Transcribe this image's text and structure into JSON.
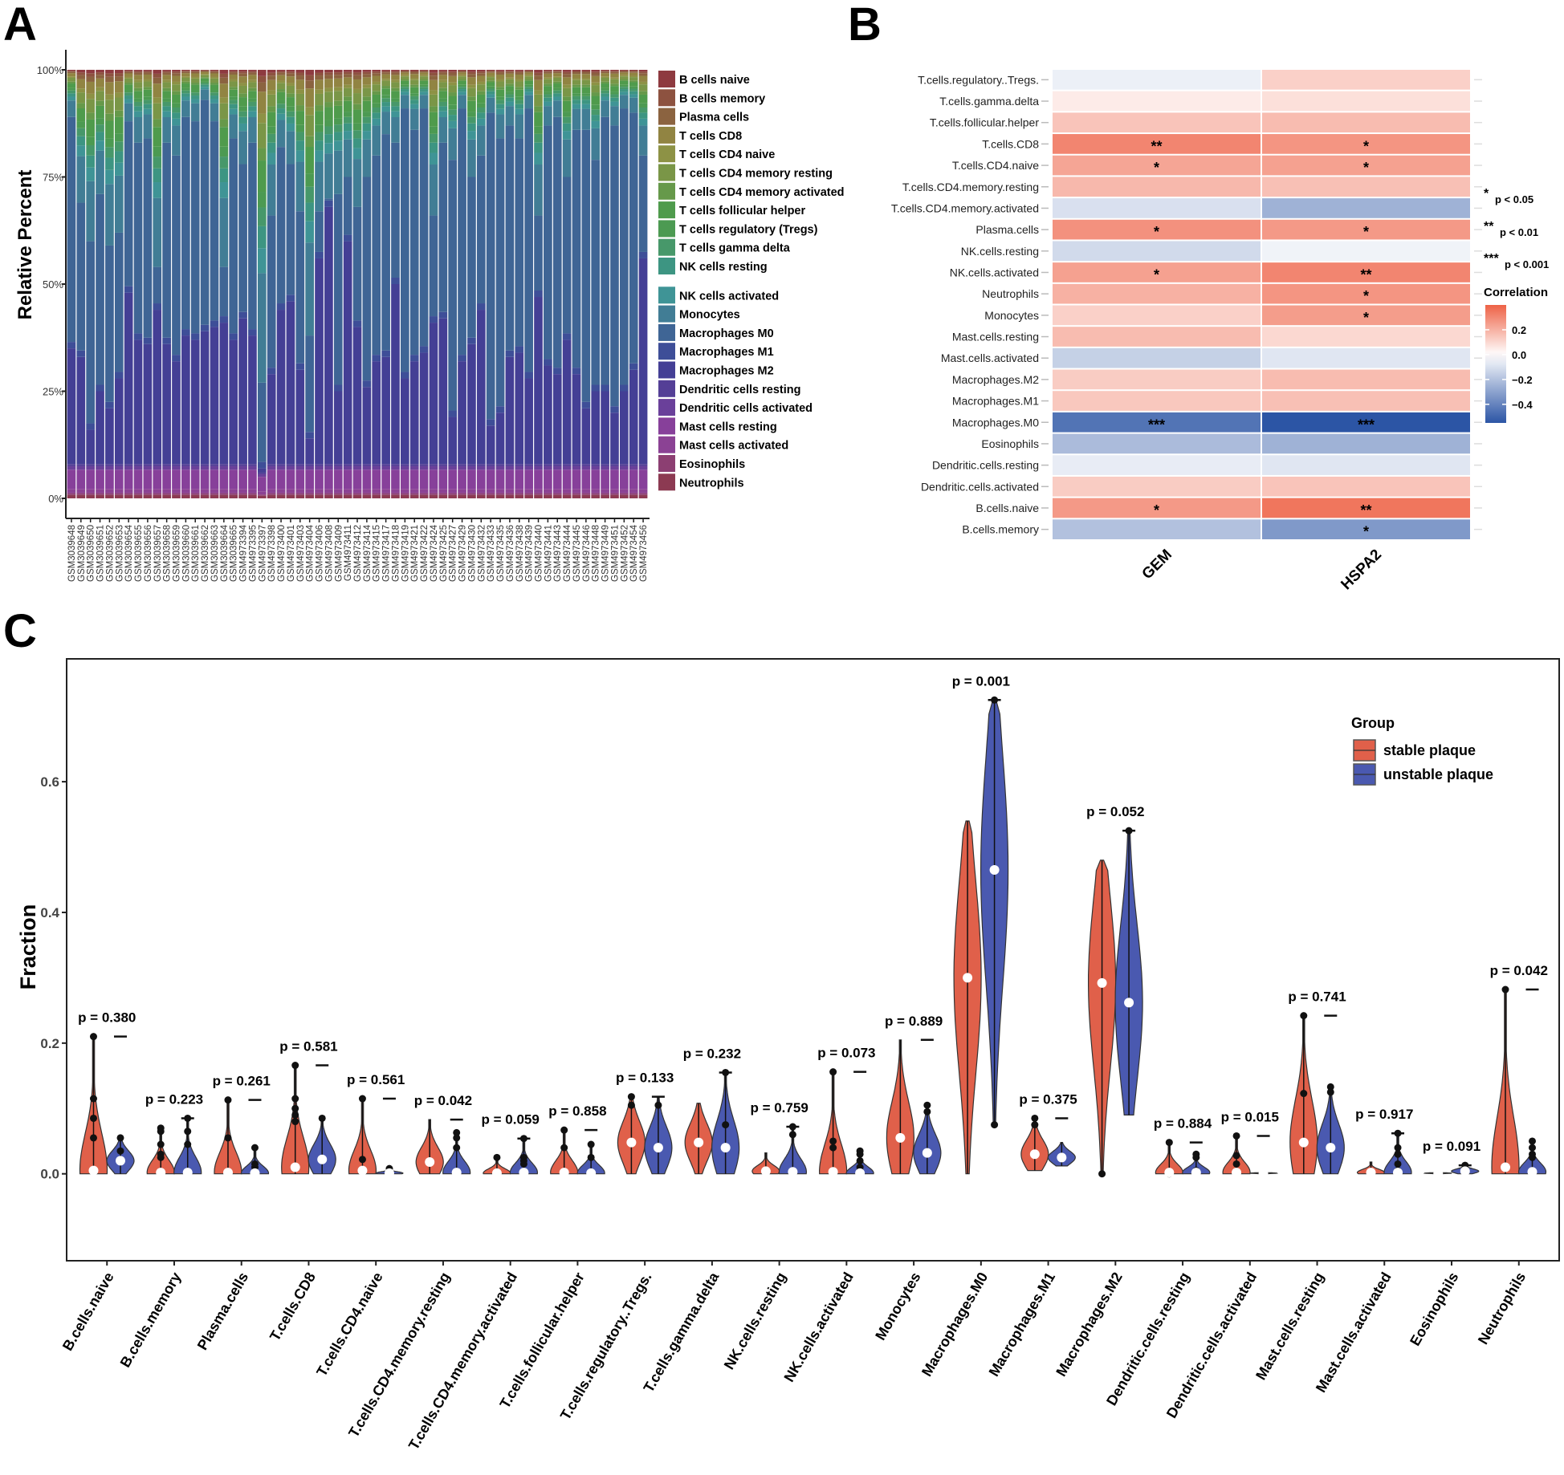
{
  "panel_labels": {
    "a": "A",
    "b": "B",
    "c": "C"
  },
  "chart_data": [
    {
      "id": "A",
      "type": "bar",
      "stacked": true,
      "ylabel": "Relative Percent",
      "yticks": [
        "0%",
        "25%",
        "50%",
        "75%",
        "100%"
      ],
      "ylim": [
        0,
        100
      ],
      "categories": [
        "GSM3039648",
        "GSM3039649",
        "GSM3039650",
        "GSM3039651",
        "GSM3039652",
        "GSM3039653",
        "GSM3039654",
        "GSM3039655",
        "GSM3039656",
        "GSM3039657",
        "GSM3039658",
        "GSM3039659",
        "GSM3039660",
        "GSM3039661",
        "GSM3039662",
        "GSM3039663",
        "GSM3039664",
        "GSM3039665",
        "GSM4973394",
        "GSM4973395",
        "GSM4973397",
        "GSM4973398",
        "GSM4973400",
        "GSM4973401",
        "GSM4973403",
        "GSM4973404",
        "GSM4973406",
        "GSM4973408",
        "GSM4973409",
        "GSM4973411",
        "GSM4973412",
        "GSM4973414",
        "GSM4973415",
        "GSM4973417",
        "GSM4973418",
        "GSM4973419",
        "GSM4973421",
        "GSM4973422",
        "GSM4973424",
        "GSM4973425",
        "GSM4973427",
        "GSM4973429",
        "GSM4973430",
        "GSM4973432",
        "GSM4973433",
        "GSM4973435",
        "GSM4973436",
        "GSM4973438",
        "GSM4973439",
        "GSM4973440",
        "GSM4973441",
        "GSM4973443",
        "GSM4973444",
        "GSM4973445",
        "GSM4973446",
        "GSM4973448",
        "GSM4973449",
        "GSM4973451",
        "GSM4973452",
        "GSM4973454",
        "GSM4973456"
      ],
      "legend": [
        {
          "label": "B cells naive",
          "color": "#8e3a40"
        },
        {
          "label": "B cells memory",
          "color": "#8d5240"
        },
        {
          "label": "Plasma cells",
          "color": "#8b6340"
        },
        {
          "label": "T cells CD8",
          "color": "#918442"
        },
        {
          "label": "T cells CD4 naive",
          "color": "#8d9245"
        },
        {
          "label": "T cells CD4 memory resting",
          "color": "#7a9647"
        },
        {
          "label": "T cells CD4 memory activated",
          "color": "#66994a"
        },
        {
          "label": "T cells follicular helper",
          "color": "#4f9b4c"
        },
        {
          "label": "T cells regulatory (Tregs)",
          "color": "#4c9a52"
        },
        {
          "label": "T cells gamma delta",
          "color": "#47986a"
        },
        {
          "label": "NK cells resting",
          "color": "#3d9582"
        },
        {
          "label": "NK cells activated",
          "color": "#3f9496"
        },
        {
          "label": "Monocytes",
          "color": "#417d95"
        },
        {
          "label": "Macrophages M0",
          "color": "#3f6595"
        },
        {
          "label": "Macrophages M1",
          "color": "#3e4e98"
        },
        {
          "label": "Macrophages M2",
          "color": "#443f95"
        },
        {
          "label": "Dendritic cells resting",
          "color": "#543f96"
        },
        {
          "label": "Dendritic cells activated",
          "color": "#6a409a"
        },
        {
          "label": "Mast cells resting",
          "color": "#87409a"
        },
        {
          "label": "Mast cells activated",
          "color": "#8b4294"
        },
        {
          "label": "Eosinophils",
          "color": "#8c3f72"
        },
        {
          "label": "Neutrophils",
          "color": "#8c3a52"
        }
      ],
      "m2_cumulative_top_percent": [
        35,
        33,
        16,
        25,
        21,
        28,
        48,
        37,
        36,
        44,
        36,
        32,
        38,
        37,
        39,
        40,
        41,
        37,
        42,
        38,
        7,
        29,
        44,
        46,
        30,
        14,
        56,
        68,
        25,
        60,
        40,
        26,
        32,
        33,
        50,
        28,
        32,
        34,
        41,
        42,
        19,
        32,
        36,
        44,
        17,
        20,
        33,
        34,
        28,
        47,
        31,
        29,
        37,
        29,
        21,
        25,
        25,
        20,
        25,
        30,
        56
      ],
      "m0_cumulative_top_percent": [
        89,
        69,
        60,
        71,
        59,
        62,
        88,
        83,
        84,
        54,
        83,
        80,
        89,
        88,
        93,
        88,
        54,
        84,
        78,
        83,
        27,
        66,
        82,
        78,
        67,
        38,
        67,
        70,
        71,
        75,
        68,
        75,
        80,
        85,
        83,
        91,
        86,
        91,
        66,
        83,
        79,
        91,
        75,
        80,
        90,
        84,
        87,
        84,
        91,
        66,
        87,
        89,
        75,
        86,
        86,
        79,
        89,
        87,
        91,
        90,
        80
      ]
    },
    {
      "id": "B",
      "type": "heatmap",
      "rows": [
        "T.cells.regulatory..Tregs.",
        "T.cells.gamma.delta",
        "T.cells.follicular.helper",
        "T.cells.CD8",
        "T.cells.CD4.naive",
        "T.cells.CD4.memory.resting",
        "T.cells.CD4.memory.activated",
        "Plasma.cells",
        "NK.cells.resting",
        "NK.cells.activated",
        "Neutrophils",
        "Monocytes",
        "Mast.cells.resting",
        "Mast.cells.activated",
        "Macrophages.M2",
        "Macrophages.M1",
        "Macrophages.M0",
        "Eosinophils",
        "Dendritic.cells.resting",
        "Dendritic.cells.activated",
        "B.cells.naive",
        "B.cells.memory"
      ],
      "columns": [
        "GEM",
        "HSPA2"
      ],
      "values": [
        [
          -0.05,
          0.12
        ],
        [
          0.05,
          0.08
        ],
        [
          0.15,
          0.17
        ],
        [
          0.31,
          0.27
        ],
        [
          0.23,
          0.24
        ],
        [
          0.18,
          0.16
        ],
        [
          -0.1,
          -0.25
        ],
        [
          0.28,
          0.26
        ],
        [
          -0.12,
          -0.04
        ],
        [
          0.24,
          0.31
        ],
        [
          0.2,
          0.27
        ],
        [
          0.12,
          0.25
        ],
        [
          0.17,
          0.1
        ],
        [
          -0.15,
          -0.08
        ],
        [
          0.13,
          0.17
        ],
        [
          0.14,
          0.16
        ],
        [
          -0.45,
          -0.55
        ],
        [
          -0.22,
          -0.25
        ],
        [
          -0.06,
          -0.08
        ],
        [
          0.13,
          0.15
        ],
        [
          0.26,
          0.35
        ],
        [
          -0.2,
          -0.33
        ]
      ],
      "significance": [
        [
          "",
          ""
        ],
        [
          "",
          ""
        ],
        [
          "",
          ""
        ],
        [
          "**",
          "*"
        ],
        [
          "*",
          "*"
        ],
        [
          "",
          ""
        ],
        [
          "",
          ""
        ],
        [
          "*",
          "*"
        ],
        [
          "",
          ""
        ],
        [
          "*",
          "**"
        ],
        [
          "",
          "*"
        ],
        [
          "",
          "*"
        ],
        [
          "",
          ""
        ],
        [
          "",
          ""
        ],
        [
          "",
          ""
        ],
        [
          "",
          ""
        ],
        [
          "***",
          "***"
        ],
        [
          "",
          ""
        ],
        [
          "",
          ""
        ],
        [
          "",
          ""
        ],
        [
          "*",
          "**"
        ],
        [
          "",
          "*"
        ]
      ],
      "sig_legend": [
        {
          "stars": "*",
          "label": "p < 0.05"
        },
        {
          "stars": "**",
          "label": "p < 0.01"
        },
        {
          "stars": "***",
          "label": "p < 0.001"
        }
      ],
      "colorbar": {
        "title": "Correlation",
        "ticks": [
          "0.2",
          "0.0",
          "−0.2",
          "−0.4"
        ],
        "tick_values": [
          0.2,
          0.0,
          -0.2,
          -0.4
        ],
        "range": [
          -0.55,
          0.4
        ],
        "low": "#2c55a5",
        "mid": "#ffffff",
        "high": "#ee6246"
      }
    },
    {
      "id": "C",
      "type": "violin",
      "ylabel": "Fraction",
      "ylim": [
        -0.133,
        0.788
      ],
      "yticks": [
        "0.0",
        "0.2",
        "0.4",
        "0.6"
      ],
      "ytick_values": [
        0,
        0.2,
        0.4,
        0.6
      ],
      "legend_title": "Group",
      "series": [
        {
          "name": "stable plaque",
          "color": "#e0604a"
        },
        {
          "name": "unstable plaque",
          "color": "#4a59b0"
        }
      ],
      "categories": [
        "B.cells.naive",
        "B.cells.memory",
        "Plasma.cells",
        "T.cells.CD8",
        "T.cells.CD4.naive",
        "T.cells.CD4.memory.resting",
        "T.cells.CD4.memory.activated",
        "T.cells.follicular.helper",
        "T.cells.regulatory..Tregs.",
        "T.cells.gamma.delta",
        "NK.cells.resting",
        "NK.cells.activated",
        "Monocytes",
        "Macrophages.M0",
        "Macrophages.M1",
        "Macrophages.M2",
        "Dendritic.cells.resting",
        "Dendritic.cells.activated",
        "Mast.cells.resting",
        "Mast.cells.activated",
        "Eosinophils",
        "Neutrophils"
      ],
      "p_values": [
        "p = 0.380",
        "p = 0.223",
        "p = 0.261",
        "p = 0.581",
        "p = 0.561",
        "p = 0.042",
        "p = 0.059",
        "p = 0.858",
        "p = 0.133",
        "p = 0.232",
        "p = 0.759",
        "p = 0.073",
        "p = 0.889",
        "p = 0.001",
        "p = 0.375",
        "p = 0.052",
        "p = 0.884",
        "p = 0.015",
        "p = 0.741",
        "p = 0.917",
        "p = 0.091",
        "p = 0.042"
      ],
      "stable": [
        {
          "min": 0,
          "median": 0.005,
          "max": 0.21,
          "outliers": [
            0.21,
            0.115,
            0.085,
            0.055
          ]
        },
        {
          "min": 0,
          "median": 0.002,
          "max": 0.07,
          "outliers": [
            0.07,
            0.065,
            0.045,
            0.03,
            0.025
          ]
        },
        {
          "min": 0,
          "median": 0.002,
          "max": 0.113,
          "outliers": [
            0.113,
            0.055
          ]
        },
        {
          "min": 0,
          "median": 0.01,
          "max": 0.166,
          "outliers": [
            0.166,
            0.115,
            0.1,
            0.09,
            0.08
          ]
        },
        {
          "min": 0,
          "median": 0.005,
          "max": 0.115,
          "outliers": [
            0.115,
            0.022
          ]
        },
        {
          "min": 0,
          "median": 0.018,
          "max": 0.083,
          "outliers": []
        },
        {
          "min": 0,
          "median": 0.001,
          "max": 0.025,
          "outliers": [
            0.025,
            0.003
          ]
        },
        {
          "min": 0,
          "median": 0.002,
          "max": 0.067,
          "outliers": [
            0.067,
            0.04
          ]
        },
        {
          "min": 0,
          "median": 0.048,
          "max": 0.118,
          "outliers": [
            0.118,
            0.105
          ]
        },
        {
          "min": 0,
          "median": 0.048,
          "max": 0.108,
          "outliers": []
        },
        {
          "min": 0,
          "median": 0.004,
          "max": 0.032,
          "outliers": []
        },
        {
          "min": 0,
          "median": 0.003,
          "max": 0.156,
          "outliers": [
            0.156,
            0.05,
            0.04
          ]
        },
        {
          "min": 0,
          "median": 0.055,
          "max": 0.205,
          "outliers": []
        },
        {
          "min": 0,
          "median": 0.3,
          "max": 0.54,
          "outliers": []
        },
        {
          "min": 0.005,
          "median": 0.03,
          "max": 0.085,
          "outliers": [
            0.085,
            0.075
          ]
        },
        {
          "min": 0,
          "median": 0.292,
          "max": 0.48,
          "outliers": [
            0
          ]
        },
        {
          "min": 0,
          "median": 0.002,
          "max": 0.048,
          "outliers": [
            0.048,
            0
          ]
        },
        {
          "min": 0,
          "median": 0.002,
          "max": 0.058,
          "outliers": [
            0.058,
            0.028,
            0.015
          ]
        },
        {
          "min": 0,
          "median": 0.048,
          "max": 0.242,
          "outliers": [
            0.242,
            0.123
          ]
        },
        {
          "min": 0,
          "median": 0.002,
          "max": 0.018,
          "outliers": []
        },
        {
          "min": 0,
          "median": 0.001,
          "max": 0.002,
          "outliers": []
        },
        {
          "min": 0,
          "median": 0.01,
          "max": 0.282,
          "outliers": [
            0.282
          ]
        }
      ],
      "unstable": [
        {
          "min": 0,
          "median": 0.02,
          "max": 0.055,
          "outliers": [
            0.055,
            0.035
          ]
        },
        {
          "min": 0,
          "median": 0.002,
          "max": 0.085,
          "outliers": [
            0.085,
            0.065,
            0.045
          ]
        },
        {
          "min": 0,
          "median": 0.001,
          "max": 0.04,
          "outliers": [
            0.04,
            0.015,
            0.01
          ]
        },
        {
          "min": 0,
          "median": 0.022,
          "max": 0.085,
          "outliers": [
            0.085
          ]
        },
        {
          "min": 0,
          "median": 0.001,
          "max": 0.008,
          "outliers": [
            0.008,
            0.005
          ]
        },
        {
          "min": 0,
          "median": 0.002,
          "max": 0.063,
          "outliers": [
            0.063,
            0.055,
            0.04
          ]
        },
        {
          "min": 0,
          "median": 0.002,
          "max": 0.054,
          "outliers": [
            0.054,
            0.025,
            0.02,
            0.015
          ]
        },
        {
          "min": 0,
          "median": 0.001,
          "max": 0.045,
          "outliers": [
            0.045,
            0.025
          ]
        },
        {
          "min": 0,
          "median": 0.04,
          "max": 0.118,
          "outliers": [
            0.105
          ]
        },
        {
          "min": 0,
          "median": 0.04,
          "max": 0.155,
          "outliers": [
            0.155,
            0.075
          ]
        },
        {
          "min": 0,
          "median": 0.003,
          "max": 0.072,
          "outliers": [
            0.072,
            0.06
          ]
        },
        {
          "min": 0,
          "median": 0.001,
          "max": 0.035,
          "outliers": [
            0.035,
            0.03,
            0.02,
            0.01,
            0.005
          ]
        },
        {
          "min": 0,
          "median": 0.032,
          "max": 0.105,
          "outliers": [
            0.105,
            0.095
          ]
        },
        {
          "min": 0.075,
          "median": 0.465,
          "max": 0.725,
          "outliers": [
            0.725,
            0.075
          ]
        },
        {
          "min": 0.012,
          "median": 0.025,
          "max": 0.048,
          "outliers": []
        },
        {
          "min": 0.09,
          "median": 0.262,
          "max": 0.525,
          "outliers": [
            0.525
          ]
        },
        {
          "min": 0,
          "median": 0.002,
          "max": 0.03,
          "outliers": [
            0.03,
            0.025,
            0.005
          ]
        },
        {
          "min": 0,
          "median": 0.001,
          "max": 0.002,
          "outliers": []
        },
        {
          "min": 0,
          "median": 0.04,
          "max": 0.133,
          "outliers": [
            0.133,
            0.125
          ]
        },
        {
          "min": 0,
          "median": 0.002,
          "max": 0.062,
          "outliers": [
            0.062,
            0.04,
            0.03,
            0.015,
            0.005
          ]
        },
        {
          "min": 0,
          "median": 0.004,
          "max": 0.013,
          "outliers": [
            0.013,
            0.008,
            0.005
          ]
        },
        {
          "min": 0,
          "median": 0.003,
          "max": 0.05,
          "outliers": [
            0.05,
            0.04,
            0.03,
            0.025
          ]
        }
      ]
    }
  ]
}
